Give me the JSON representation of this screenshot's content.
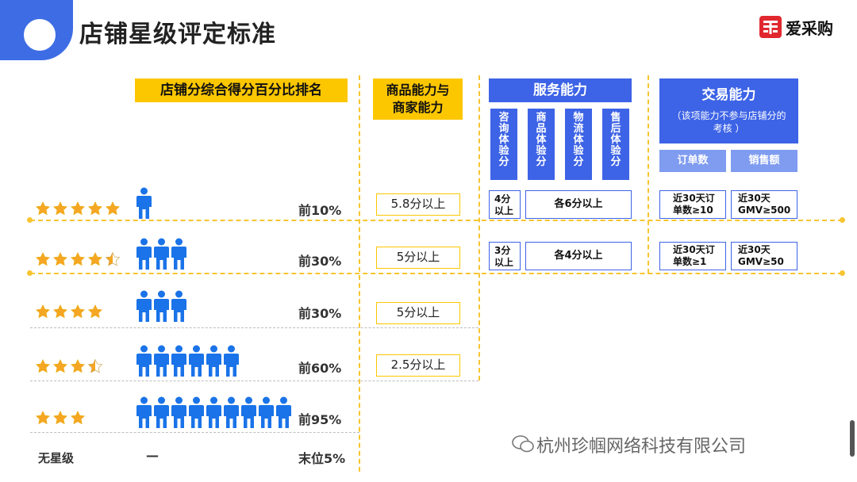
{
  "header": {
    "title": "店铺星级评定标准",
    "logo_text": "爱采购"
  },
  "columns": {
    "rank": "店铺分综合得分百分比排名",
    "goods": "商品能力与商家能力",
    "service": "服务能力",
    "service_sub": [
      "咨询体验分",
      "商品体验分",
      "物流体验分",
      "售后体验分"
    ],
    "trade": "交易能力",
    "trade_note": "（该项能力不参与店铺分的考核 ）",
    "trade_sub": [
      "订单数",
      "销售额"
    ]
  },
  "rows": [
    {
      "stars": 5,
      "half": false,
      "people": 1,
      "rank": "前10%",
      "goods": "5.8分以上"
    },
    {
      "stars": 4,
      "half": true,
      "people": 3,
      "rank": "前30%",
      "goods": "5分以上"
    },
    {
      "stars": 4,
      "half": false,
      "people": 3,
      "rank": "前30%",
      "goods": "5分以上"
    },
    {
      "stars": 3,
      "half": true,
      "people": 6,
      "rank": "前60%",
      "goods": "2.5分以上"
    },
    {
      "stars": 3,
      "half": false,
      "people": 9,
      "rank": "前95%",
      "goods": ""
    },
    {
      "stars": 0,
      "half": false,
      "people": 0,
      "rank": "末位5%",
      "goods": "",
      "label": "无星级",
      "dash": "—"
    }
  ],
  "service_rows": [
    {
      "first": "4分以上",
      "rest": "各6分以上"
    },
    {
      "first": "3分以上",
      "rest": "各4分以上"
    }
  ],
  "trade_rows": [
    {
      "orders": "近30天订单数≥10",
      "sales": "近30天GMV≥500"
    },
    {
      "orders": "近30天订单数≥1",
      "sales": "近30天GMV≥50"
    }
  ],
  "watermark": "杭州珍帼网络科技有限公司",
  "colors": {
    "blue": "#3d63e6",
    "yellow": "#fdc700",
    "star": "#f5a623",
    "person": "#1a73e8"
  }
}
